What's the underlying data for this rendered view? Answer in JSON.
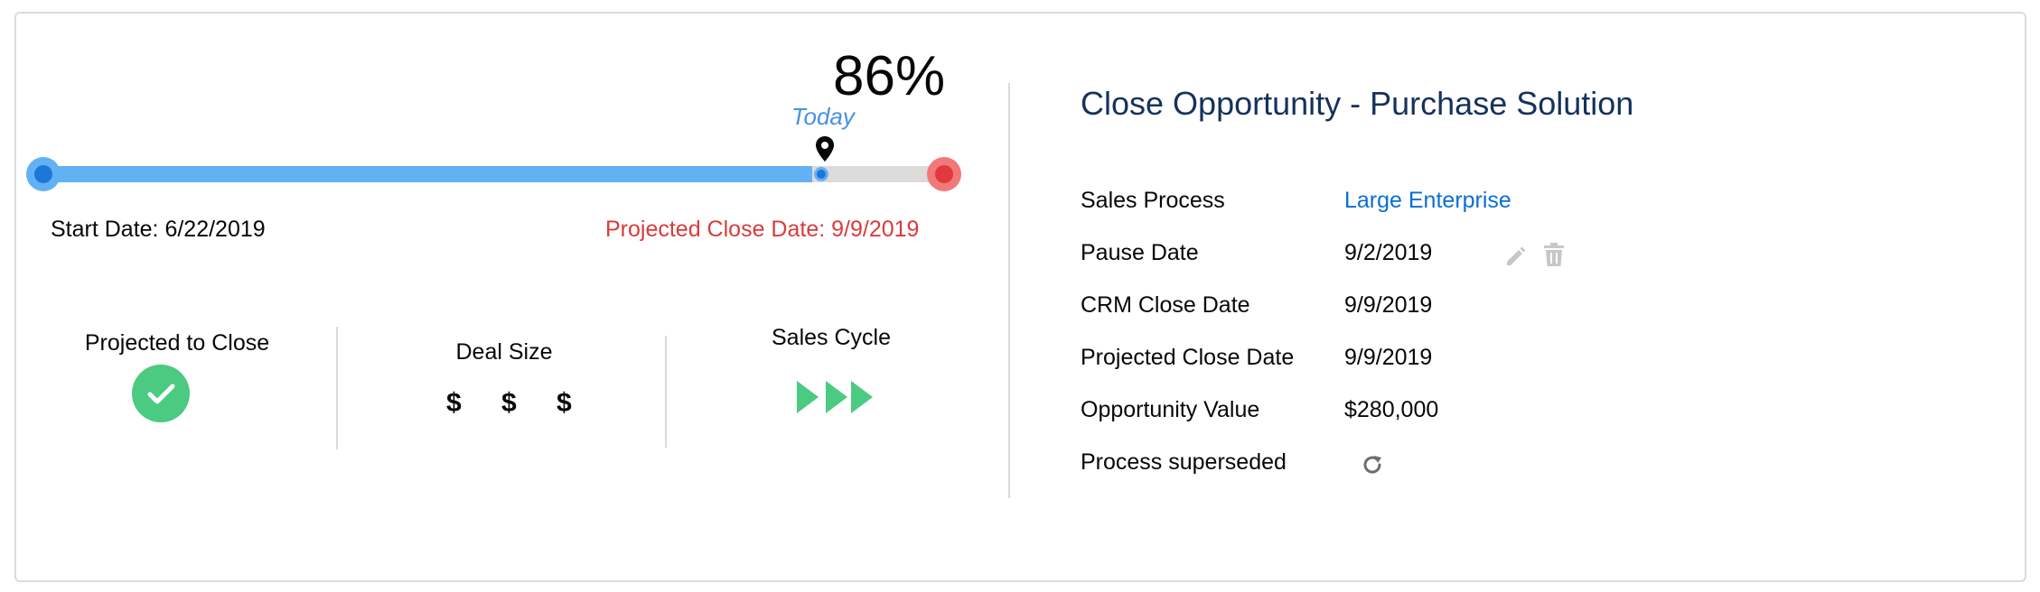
{
  "timeline": {
    "percent_label": "86%",
    "progress_fraction": 0.86,
    "today_label": "Today",
    "start_date_label": "Start Date: 6/22/2019",
    "projected_close_label": "Projected Close Date: 9/9/2019"
  },
  "stats": {
    "projected_to_close": {
      "label": "Projected to Close",
      "icon": "check-icon",
      "color": "#4bca81"
    },
    "deal_size": {
      "label": "Deal Size",
      "value": "$ $ $"
    },
    "sales_cycle": {
      "label": "Sales Cycle",
      "icon": "triple-play-arrows-icon",
      "color": "#4bca81"
    }
  },
  "details": {
    "title": "Close Opportunity - Purchase Solution",
    "rows": [
      {
        "label": "Sales Process",
        "value": "Large Enterprise"
      },
      {
        "label": "Pause Date",
        "value": "9/2/2019"
      },
      {
        "label": "CRM Close Date",
        "value": "9/9/2019"
      },
      {
        "label": "Projected Close Date",
        "value": "9/9/2019"
      },
      {
        "label": "Opportunity Value",
        "value": "$280,000"
      },
      {
        "label": "Process superseded",
        "value": ""
      }
    ]
  },
  "colors": {
    "accent_blue": "#1b78d7",
    "progress_blue": "#63b1f5",
    "close_red": "#d93b3b",
    "success_green": "#4bca81",
    "title_navy": "#16325c"
  }
}
